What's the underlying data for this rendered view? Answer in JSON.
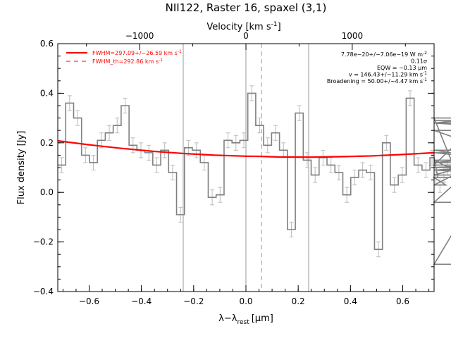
{
  "chart_data": {
    "type": "line",
    "title": "NII122, Raster 16, spaxel (3,1)",
    "xlabel": "λ−λ",
    "xlabel_sub": "rest",
    "xlabel_unit": "[μm]",
    "ylabel": "Flux density [Jy]",
    "top_axis_label": "Velocity [km s",
    "top_axis_label_sup": "-1",
    "top_axis_label_end": "]",
    "xlim": [
      -0.72,
      0.72
    ],
    "ylim": [
      -0.4,
      0.6
    ],
    "top_xlim": [
      -1770,
      1770
    ],
    "x_ticks": [
      -0.6,
      -0.4,
      -0.2,
      0.0,
      0.2,
      0.4,
      0.6
    ],
    "x_tick_labels": [
      "−0.6",
      "−0.4",
      "−0.2",
      "0.0",
      "0.2",
      "0.4",
      "0.6"
    ],
    "y_ticks": [
      -0.4,
      -0.2,
      0.0,
      0.2,
      0.4,
      0.6
    ],
    "y_tick_labels": [
      "−0.4",
      "−0.2",
      "0.0",
      "0.2",
      "0.4",
      "0.6"
    ],
    "top_ticks": [
      -1000,
      0,
      1000
    ],
    "top_tick_labels": [
      "−1000",
      "0",
      "1000"
    ],
    "vertical_lines": [
      -0.24,
      0.0,
      0.24
    ],
    "center_dashed_line": 0.06,
    "bin_width": 0.0303,
    "x_start": -0.72,
    "flux": [
      0.11,
      0.36,
      0.3,
      0.15,
      0.12,
      0.21,
      0.24,
      0.27,
      0.35,
      0.19,
      0.17,
      0.16,
      0.11,
      0.17,
      0.08,
      -0.09,
      0.18,
      0.17,
      0.12,
      -0.02,
      -0.01,
      0.21,
      0.2,
      0.21,
      0.4,
      0.27,
      0.19,
      0.24,
      0.17,
      -0.15,
      0.32,
      0.13,
      0.07,
      0.14,
      0.11,
      0.08,
      -0.01,
      0.06,
      0.09,
      0.08,
      -0.23,
      0.2,
      0.03,
      0.07,
      0.38,
      0.11,
      0.09,
      0.14,
      0.06,
      0.03,
      0.07,
      0.1,
      0.11,
      0.28,
      0.3,
      -0.29,
      0.16,
      0.13,
      -0.04,
      0.29,
      0.28,
      0.25,
      0.09,
      0.12,
      0.17,
      0.09,
      0.06
    ],
    "error": 0.03,
    "fit_x": [
      -0.72,
      -0.6,
      -0.48,
      -0.36,
      -0.24,
      -0.12,
      0.0,
      0.06,
      0.12,
      0.24,
      0.36,
      0.48,
      0.6,
      0.72
    ],
    "fit_y": [
      0.208,
      0.192,
      0.178,
      0.166,
      0.157,
      0.15,
      0.146,
      0.145,
      0.143,
      0.142,
      0.144,
      0.147,
      0.153,
      0.16
    ],
    "legend": {
      "placement": "top-left",
      "line1": "FWHM=297.09+/−26.59 km s",
      "line1_sup": "-1",
      "line2": "FWHM_th=292.86 km s",
      "line2_sup": "-1"
    },
    "annotations": [
      {
        "text": "7.78e−20+/−7.06e−19 W m",
        "sup": "-2"
      },
      {
        "text": "0.11σ",
        "sup": ""
      },
      {
        "text": "EQW = −0.13 μm",
        "sup": ""
      },
      {
        "text": "v = 146.43+/−11.29 km s",
        "sup": "-1"
      },
      {
        "text": "Broadening = 50.00+/−4.47 km s",
        "sup": "-1"
      }
    ],
    "colors": {
      "data": "#808080",
      "error": "#bbbbbb",
      "fit": "#ff0000",
      "axes": "#000000",
      "vline": "#999999"
    }
  }
}
